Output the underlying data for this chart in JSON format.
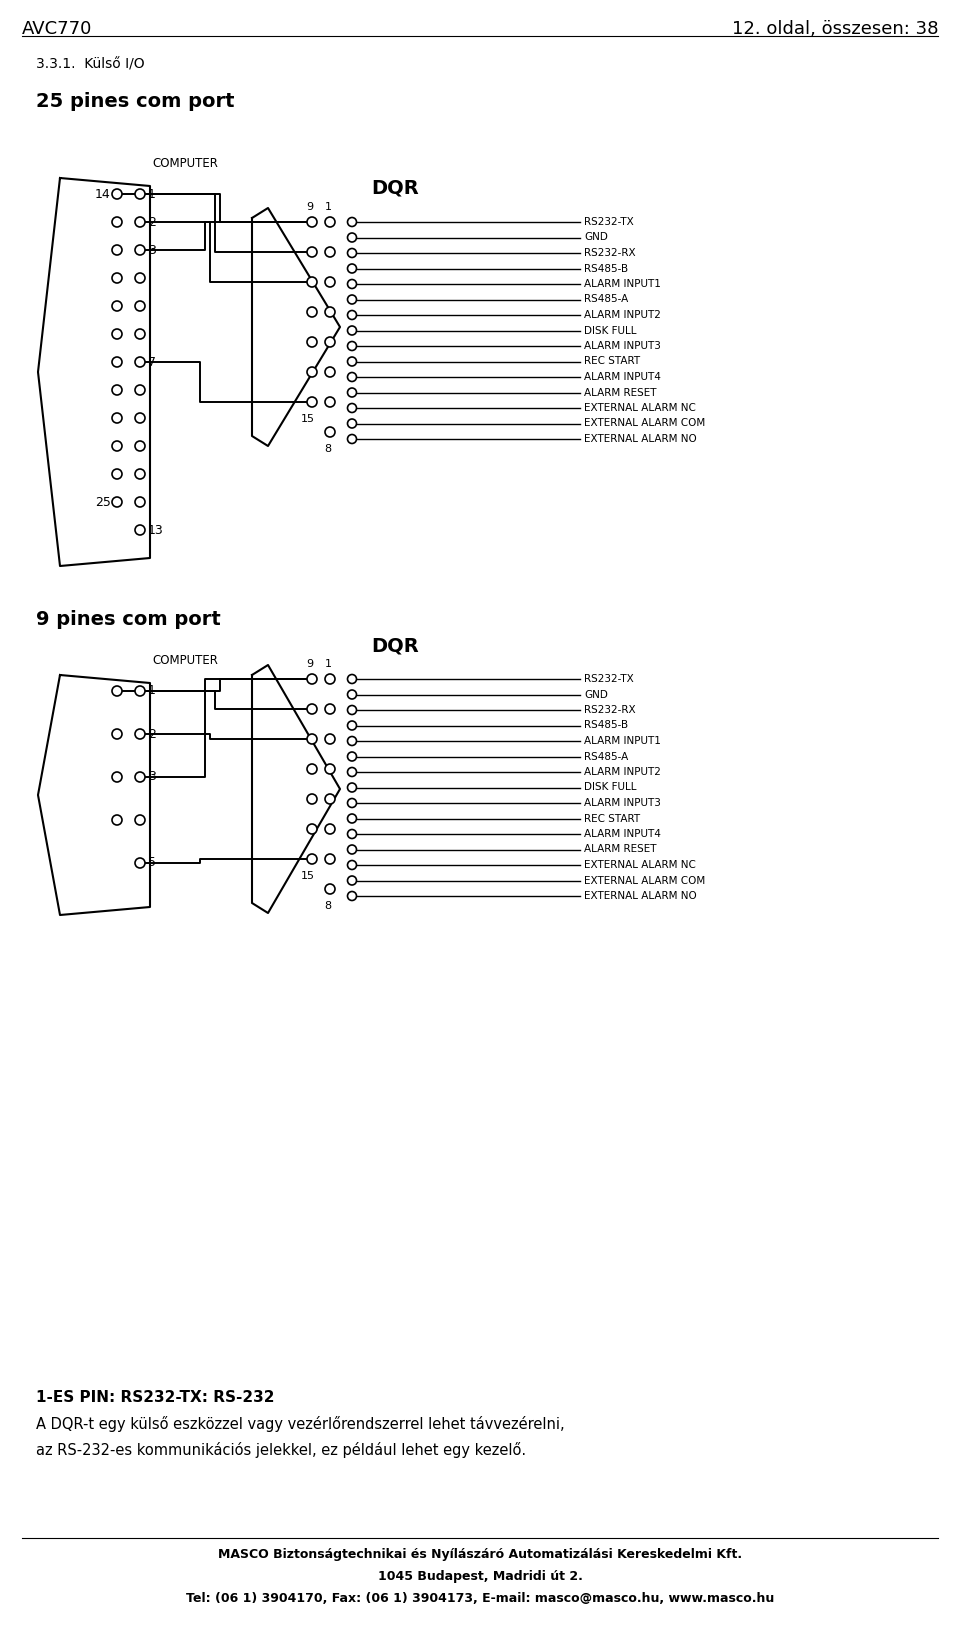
{
  "title_header_left": "AVC770",
  "title_header_right": "12. oldal, összesen: 38",
  "section_title": "3.3.1.  Külső I/O",
  "diagram1_title": "25 pines com port",
  "diagram2_title": "9 pines com port",
  "computer_label": "COMPUTER",
  "dqr_label": "DQR",
  "dqr_signals": [
    "RS232-TX",
    "GND",
    "RS232-RX",
    "RS485-B",
    "ALARM INPUT1",
    "RS485-A",
    "ALARM INPUT2",
    "DISK FULL",
    "ALARM INPUT3",
    "REC START",
    "ALARM INPUT4",
    "ALARM RESET",
    "EXTERNAL ALARM NC",
    "EXTERNAL ALARM COM",
    "EXTERNAL ALARM NO"
  ],
  "pin1_title": "1-ES PIN: RS232-TX: RS-232",
  "pin1_text1": "A DQR-t egy külső eszközzel vagy vezérlőrendszerrel lehet távvezérelni,",
  "pin1_text2": "az RS-232-es kommunikációs jelekkel, ez például lehet egy kezelő.",
  "footer1": "MASCO Biztonságtechnikai és Nyílászáró Automatizálási Kereskedelmi Kft.",
  "footer2": "1045 Budapest, Madridi út 2.",
  "footer3": "Tel: (06 1) 3904170, Fax: (06 1) 3904173, E-mail: masco@masco.hu, www.masco.hu",
  "bg_color": "#ffffff",
  "text_color": "#000000",
  "line_color": "#000000"
}
